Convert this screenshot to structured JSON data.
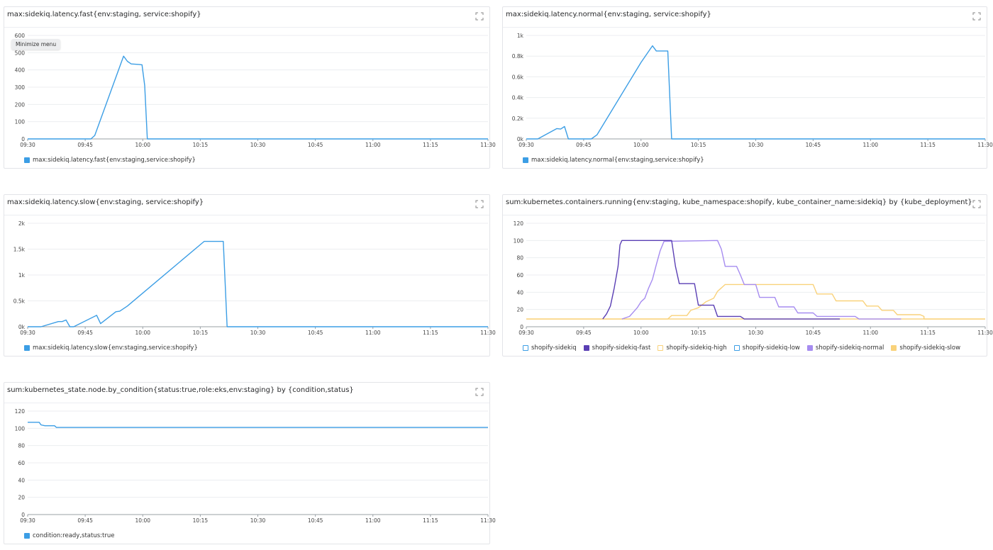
{
  "tooltip": {
    "text": "Minimize menu"
  },
  "colors": {
    "primary": "#3c9ee5",
    "fast": "#5a3fb4",
    "high": "#f9d27a",
    "normal": "#a68cf0",
    "sidekiq": "#ffffff",
    "low": "#ffffff",
    "grid": "#eceef0"
  },
  "panels": [
    {
      "id": "fast",
      "title": "max:sidekiq.latency.fast{env:staging, service:shopify}",
      "legend": [
        {
          "label": "max:sidekiq.latency.fast{env:staging,service:shopify}",
          "color": "#3c9ee5",
          "outline": false
        }
      ]
    },
    {
      "id": "normal",
      "title": "max:sidekiq.latency.normal{env:staging, service:shopify}",
      "legend": [
        {
          "label": "max:sidekiq.latency.normal{env:staging,service:shopify}",
          "color": "#3c9ee5",
          "outline": false
        }
      ]
    },
    {
      "id": "slow",
      "title": "max:sidekiq.latency.slow{env:staging, service:shopify}",
      "legend": [
        {
          "label": "max:sidekiq.latency.slow{env:staging,service:shopify}",
          "color": "#3c9ee5",
          "outline": false
        }
      ]
    },
    {
      "id": "containers",
      "title": "sum:kubernetes.containers.running{env:staging, kube_namespace:shopify, kube_container_name:sidekiq} by {kube_deployment}",
      "legend": [
        {
          "label": "shopify-sidekiq",
          "color": "#3c9ee5",
          "outline": true
        },
        {
          "label": "shopify-sidekiq-fast",
          "color": "#5a3fb4",
          "outline": false
        },
        {
          "label": "shopify-sidekiq-high",
          "color": "#f9d27a",
          "outline": true
        },
        {
          "label": "shopify-sidekiq-low",
          "color": "#3c9ee5",
          "outline": true
        },
        {
          "label": "shopify-sidekiq-normal",
          "color": "#a68cf0",
          "outline": false
        },
        {
          "label": "shopify-sidekiq-slow",
          "color": "#f9d27a",
          "outline": false
        }
      ]
    },
    {
      "id": "nodes",
      "title": "sum:kubernetes_state.node.by_condition{status:true,role:eks,env:staging} by {condition,status}",
      "legend": [
        {
          "label": "condition:ready,status:true",
          "color": "#3c9ee5",
          "outline": false
        }
      ]
    }
  ],
  "chart_data": [
    {
      "type": "line",
      "title": "max:sidekiq.latency.fast{env:staging, service:shopify}",
      "x_ticks": [
        "09:30",
        "09:45",
        "10:00",
        "10:15",
        "10:30",
        "10:45",
        "11:00",
        "11:15",
        "11:30"
      ],
      "y_ticks": [
        "0",
        "100",
        "200",
        "300",
        "400",
        "500",
        "600"
      ],
      "ylim": [
        0,
        600
      ],
      "xlim_minutes": [
        0,
        120
      ],
      "series": [
        {
          "name": "max:sidekiq.latency.fast{env:staging,service:shopify}",
          "color": "#3c9ee5",
          "points": [
            [
              0,
              0
            ],
            [
              16.5,
              0
            ],
            [
              17.5,
              20
            ],
            [
              25,
              480
            ],
            [
              26,
              450
            ],
            [
              27,
              435
            ],
            [
              29,
              432
            ],
            [
              29.8,
              430
            ],
            [
              30.5,
              310
            ],
            [
              31.2,
              0
            ],
            [
              120,
              0
            ]
          ]
        }
      ]
    },
    {
      "type": "line",
      "title": "max:sidekiq.latency.normal{env:staging, service:shopify}",
      "x_ticks": [
        "09:30",
        "09:45",
        "10:00",
        "10:15",
        "10:30",
        "10:45",
        "11:00",
        "11:15",
        "11:30"
      ],
      "y_ticks": [
        "0k",
        "0.2k",
        "0.4k",
        "0.6k",
        "0.8k",
        "1k"
      ],
      "ylim": [
        0,
        1000
      ],
      "xlim_minutes": [
        0,
        120
      ],
      "series": [
        {
          "name": "max:sidekiq.latency.normal{env:staging,service:shopify}",
          "color": "#3c9ee5",
          "points": [
            [
              0,
              0
            ],
            [
              3,
              0
            ],
            [
              8,
              100
            ],
            [
              9,
              95
            ],
            [
              10,
              120
            ],
            [
              11,
              0
            ],
            [
              17,
              0
            ],
            [
              18.5,
              40
            ],
            [
              30,
              740
            ],
            [
              33,
              900
            ],
            [
              34,
              850
            ],
            [
              37,
              850
            ],
            [
              38,
              0
            ],
            [
              120,
              0
            ]
          ]
        }
      ]
    },
    {
      "type": "line",
      "title": "max:sidekiq.latency.slow{env:staging, service:shopify}",
      "x_ticks": [
        "09:30",
        "09:45",
        "10:00",
        "10:15",
        "10:30",
        "10:45",
        "11:00",
        "11:15",
        "11:30"
      ],
      "y_ticks": [
        "0k",
        "0.5k",
        "1k",
        "1.5k",
        "2k"
      ],
      "ylim": [
        0,
        2000
      ],
      "xlim_minutes": [
        0,
        120
      ],
      "series": [
        {
          "name": "max:sidekiq.latency.slow{env:staging,service:shopify}",
          "color": "#3c9ee5",
          "points": [
            [
              0,
              0
            ],
            [
              1.5,
              0
            ],
            [
              3.5,
              0
            ],
            [
              8,
              100
            ],
            [
              9,
              100
            ],
            [
              10,
              130
            ],
            [
              11,
              0
            ],
            [
              12,
              0
            ],
            [
              18,
              220
            ],
            [
              19,
              60
            ],
            [
              23,
              290
            ],
            [
              24,
              300
            ],
            [
              26,
              400
            ],
            [
              46,
              1650
            ],
            [
              51,
              1650
            ],
            [
              52,
              0
            ],
            [
              120,
              0
            ]
          ]
        }
      ]
    },
    {
      "type": "line",
      "title": "sum:kubernetes.containers.running{env:staging, kube_namespace:shopify, kube_container_name:sidekiq} by {kube_deployment}",
      "x_ticks": [
        "09:30",
        "09:45",
        "10:00",
        "10:15",
        "10:30",
        "10:45",
        "11:00",
        "11:15",
        "11:30"
      ],
      "y_ticks": [
        "0",
        "20",
        "40",
        "60",
        "80",
        "100",
        "120"
      ],
      "ylim": [
        0,
        120
      ],
      "xlim_minutes": [
        0,
        120
      ],
      "series": [
        {
          "name": "shopify-sidekiq-slow",
          "color": "#f9d27a",
          "points": [
            [
              0,
              9
            ],
            [
              37,
              9
            ],
            [
              38,
              13
            ],
            [
              42,
              13
            ],
            [
              43,
              19
            ],
            [
              45,
              22
            ],
            [
              47,
              29
            ],
            [
              49,
              33
            ],
            [
              50,
              41
            ],
            [
              52,
              49
            ],
            [
              58,
              49
            ],
            [
              61,
              49
            ],
            [
              67,
              49
            ],
            [
              72,
              49
            ],
            [
              75,
              49
            ],
            [
              76,
              38
            ],
            [
              80,
              38
            ],
            [
              81,
              30
            ],
            [
              88,
              30
            ],
            [
              89,
              24
            ],
            [
              92,
              24
            ],
            [
              93,
              19
            ],
            [
              96,
              19
            ],
            [
              97,
              14
            ],
            [
              103,
              14
            ],
            [
              104,
              12
            ],
            [
              104,
              9
            ],
            [
              120,
              9
            ]
          ]
        },
        {
          "name": "shopify-sidekiq-high",
          "color": "#f9d27a",
          "points": [
            [
              0,
              9
            ],
            [
              120,
              9
            ]
          ]
        },
        {
          "name": "shopify-sidekiq-normal",
          "color": "#a68cf0",
          "points": [
            [
              25,
              9
            ],
            [
              27,
              12
            ],
            [
              28,
              17
            ],
            [
              29,
              22
            ],
            [
              30,
              29
            ],
            [
              31,
              33
            ],
            [
              32,
              45
            ],
            [
              33,
              55
            ],
            [
              34,
              72
            ],
            [
              35,
              88
            ],
            [
              36,
              99
            ],
            [
              50,
              100
            ],
            [
              51,
              90
            ],
            [
              52,
              70
            ],
            [
              55,
              70
            ],
            [
              56,
              60
            ],
            [
              57,
              49
            ],
            [
              60,
              49
            ],
            [
              61,
              34
            ],
            [
              65,
              34
            ],
            [
              66,
              23
            ],
            [
              70,
              23
            ],
            [
              71,
              16
            ],
            [
              75,
              16
            ],
            [
              76,
              12
            ],
            [
              86,
              12
            ],
            [
              87,
              9
            ],
            [
              98,
              9
            ]
          ]
        },
        {
          "name": "shopify-sidekiq-fast",
          "color": "#5a3fb4",
          "points": [
            [
              20,
              9
            ],
            [
              21,
              15
            ],
            [
              22,
              24
            ],
            [
              23,
              45
            ],
            [
              24,
              70
            ],
            [
              24.5,
              95
            ],
            [
              25,
              100
            ],
            [
              38,
              100
            ],
            [
              39,
              70
            ],
            [
              40,
              50
            ],
            [
              44,
              50
            ],
            [
              45,
              25
            ],
            [
              49,
              25
            ],
            [
              50,
              12
            ],
            [
              56,
              12
            ],
            [
              57,
              9
            ],
            [
              82,
              9
            ]
          ]
        }
      ]
    },
    {
      "type": "line",
      "title": "sum:kubernetes_state.node.by_condition{status:true,role:eks,env:staging} by {condition,status}",
      "x_ticks": [
        "09:30",
        "09:45",
        "10:00",
        "10:15",
        "10:30",
        "10:45",
        "11:00",
        "11:15",
        "11:30"
      ],
      "y_ticks": [
        "0",
        "20",
        "40",
        "60",
        "80",
        "100",
        "120"
      ],
      "ylim": [
        0,
        120
      ],
      "xlim_minutes": [
        0,
        120
      ],
      "series": [
        {
          "name": "condition:ready,status:true",
          "color": "#3c9ee5",
          "points": [
            [
              0,
              107
            ],
            [
              3,
              107
            ],
            [
              3.5,
              104
            ],
            [
              4.5,
              103
            ],
            [
              7,
              103
            ],
            [
              7.5,
              101
            ],
            [
              120,
              101
            ]
          ]
        }
      ]
    }
  ]
}
